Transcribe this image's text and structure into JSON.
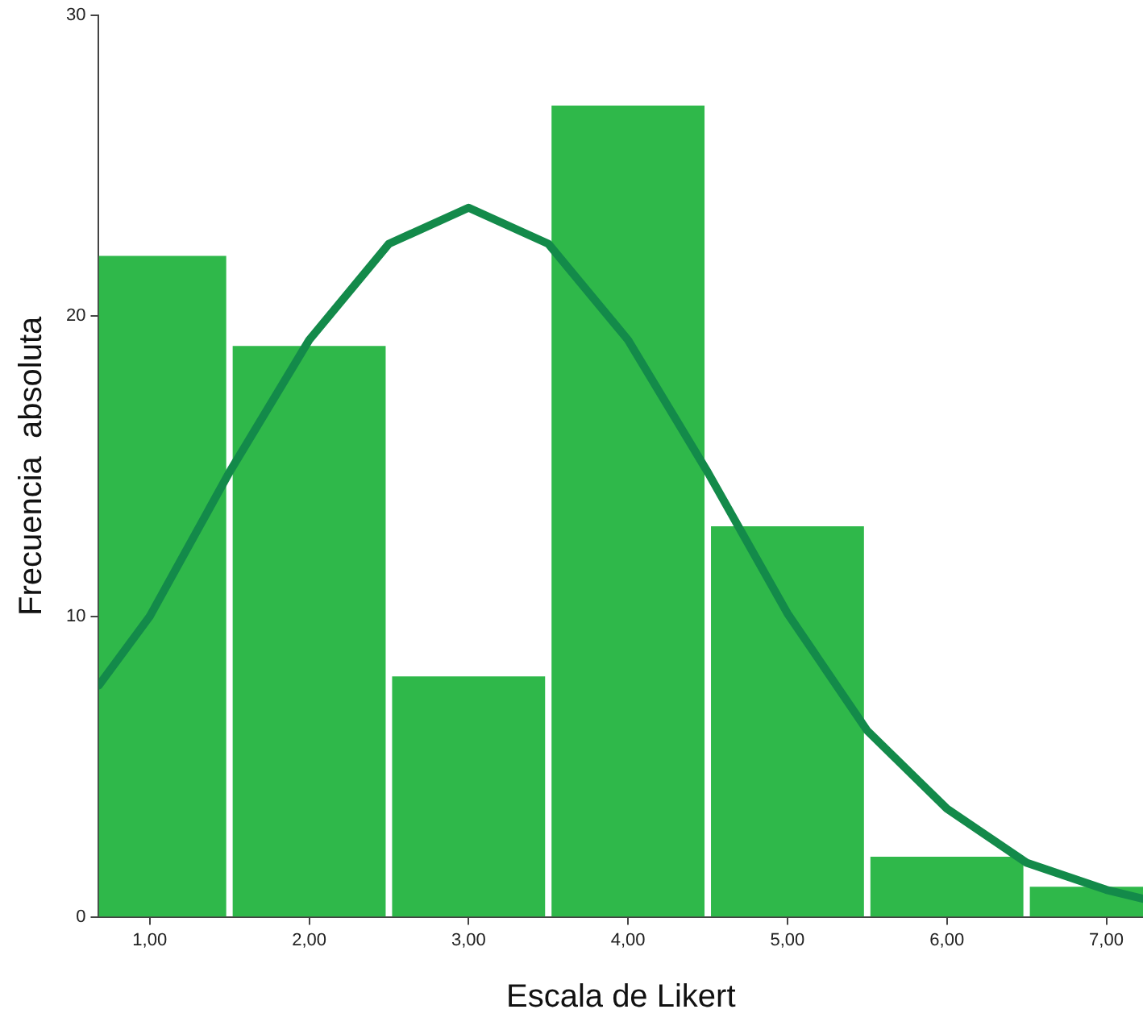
{
  "chart_data": {
    "type": "histogram",
    "xlabel": "Escala de Likert",
    "ylabel": "Frecuencia  absoluta",
    "bins": [
      0.68,
      1.5,
      2.5,
      3.5,
      4.5,
      5.5,
      6.5,
      7.23
    ],
    "values": [
      22,
      19,
      8,
      27,
      13,
      2,
      1
    ],
    "color": "#2fb84a",
    "series": [
      {
        "type": "line",
        "color": "#138a4a",
        "x": [
          0.68,
          1.0,
          1.5,
          2.0,
          2.5,
          3.0,
          3.5,
          4.0,
          4.5,
          5.0,
          5.5,
          6.0,
          6.5,
          7.0,
          7.23
        ],
        "values": [
          7.7,
          10.0,
          14.8,
          19.2,
          22.4,
          23.6,
          22.4,
          19.2,
          14.8,
          10.1,
          6.2,
          3.6,
          1.8,
          0.9,
          0.6
        ]
      }
    ],
    "xlim": [
      0.68,
      7.23
    ],
    "xticks": [
      {
        "value": 1,
        "label": "1,00"
      },
      {
        "value": 2,
        "label": "2,00"
      },
      {
        "value": 3,
        "label": "3,00"
      },
      {
        "value": 4,
        "label": "4,00"
      },
      {
        "value": 5,
        "label": "5,00"
      },
      {
        "value": 6,
        "label": "6,00"
      },
      {
        "value": 7,
        "label": "7,00"
      }
    ],
    "ylim": [
      0,
      30
    ],
    "yticks": [
      0,
      10,
      20,
      30
    ],
    "grid": false,
    "legend": false,
    "marker": "none",
    "line_style": "solid"
  }
}
